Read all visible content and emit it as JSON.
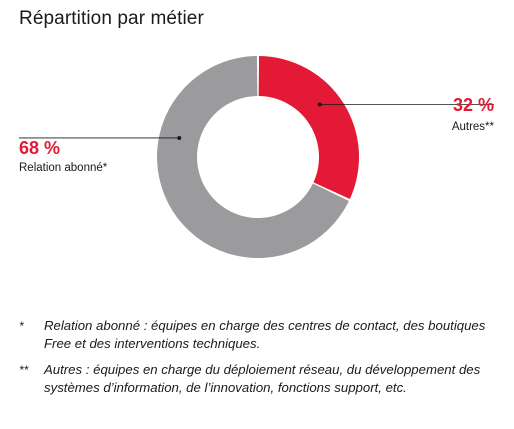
{
  "title": "Répartition par métier",
  "chart_data": {
    "type": "pie",
    "style": "donut",
    "categories": [
      "Autres**",
      "Relation abonné*"
    ],
    "values": [
      32,
      68
    ],
    "labels": [
      "32 %",
      "68 %"
    ],
    "colors": [
      "#e41935",
      "#9b9b9d"
    ]
  },
  "footnotes": [
    {
      "mark": "*",
      "text": "Relation abonné : équipes en charge des centres de contact, des boutiques Free et des interventions techniques."
    },
    {
      "mark": "**",
      "text": "Autres : équipes en charge du déploiement réseau, du développement des systèmes d’information, de l’innovation, fonctions support, etc."
    }
  ]
}
